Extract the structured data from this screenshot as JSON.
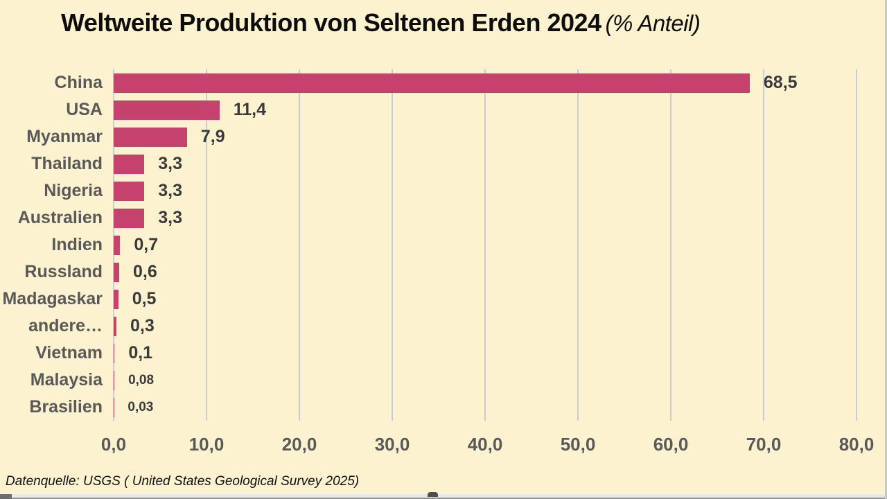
{
  "title": {
    "main": "Weltweite Produktion von Seltenen Erden 2024",
    "suffix": "(% Anteil)"
  },
  "source_note": "Datenquelle: USGS ( United States Geological Survey 2025)",
  "colors": {
    "background": "#fdf2d0",
    "bar": "#c5426e",
    "category_label": "#595959",
    "value_label": "#3a3a3a",
    "tick_label": "#595959",
    "gridline": "#c8ccd4",
    "title": "#0d0d0d"
  },
  "chart_data": {
    "type": "bar",
    "orientation": "horizontal",
    "title": "Weltweite Produktion von Seltenen Erden 2024",
    "subtitle": "(% Anteil)",
    "categories": [
      "China",
      "USA",
      "Myanmar",
      "Thailand",
      "Nigeria",
      "Australien",
      "Indien",
      "Russland",
      "Madagaskar",
      "andere…",
      "Vietnam",
      "Malaysia",
      "Brasilien"
    ],
    "values": [
      68.5,
      11.4,
      7.9,
      3.3,
      3.3,
      3.3,
      0.7,
      0.6,
      0.5,
      0.3,
      0.1,
      0.08,
      0.03
    ],
    "value_labels": [
      "68,5",
      "11,4",
      "7,9",
      "3,3",
      "3,3",
      "3,3",
      "0,7",
      "0,6",
      "0,5",
      "0,3",
      "0,1",
      "0,08",
      "0,03"
    ],
    "xlabel": "",
    "ylabel": "",
    "xlim": [
      0,
      80
    ],
    "x_tick_step": 10,
    "x_tick_labels": [
      "0,0",
      "10,0",
      "20,0",
      "30,0",
      "40,0",
      "50,0",
      "60,0",
      "70,0",
      "80,0"
    ],
    "grid": true,
    "legend": false,
    "source": "Datenquelle: USGS ( United States Geological Survey 2025)"
  }
}
